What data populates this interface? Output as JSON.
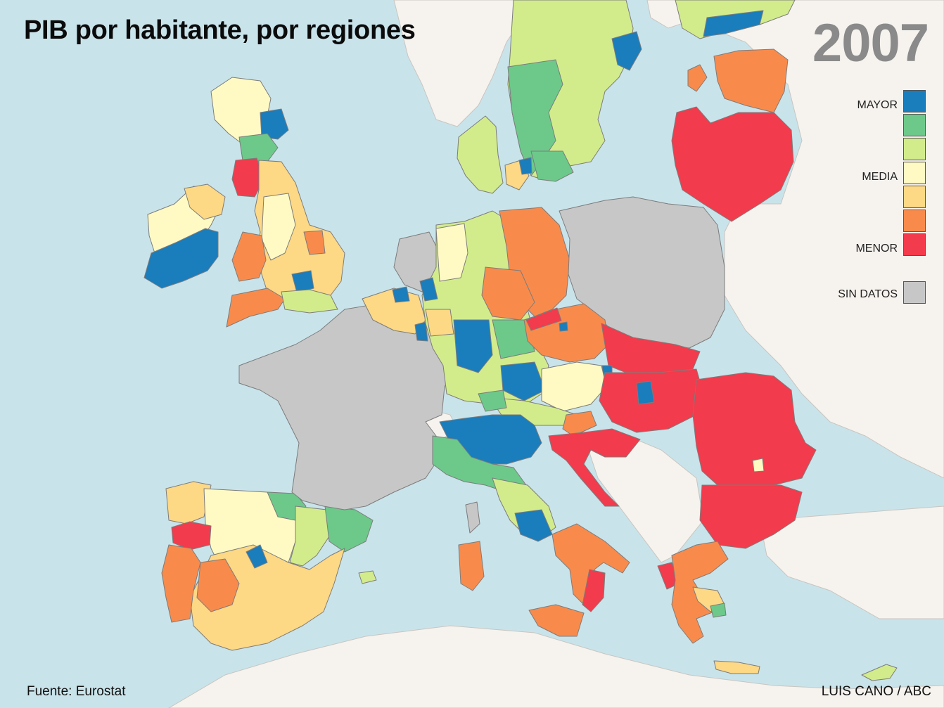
{
  "title": "PIB por habitante, por regiones",
  "year": "2007",
  "source": "Fuente: Eurostat",
  "credit": "LUIS CANO / ABC",
  "legend": {
    "labels": {
      "high": "MAYOR",
      "mid": "MEDIA",
      "low": "MENOR",
      "nodata": "SIN DATOS"
    },
    "scale": [
      {
        "level": "mayor",
        "color": "#1a7dbc"
      },
      {
        "level": "alto",
        "color": "#6cc98a"
      },
      {
        "level": "medio-alto",
        "color": "#d2ec8c"
      },
      {
        "level": "media",
        "color": "#fffac3"
      },
      {
        "level": "medio-bajo",
        "color": "#fdd885"
      },
      {
        "level": "bajo",
        "color": "#f88b4c"
      },
      {
        "level": "menor",
        "color": "#f23b4c"
      }
    ],
    "nodata_color": "#c7c7c7"
  },
  "colors": {
    "sea": "#c9e3ea",
    "non_eu_land": "#f6f3ef"
  },
  "regions": [
    {
      "name": "Irlanda",
      "level": "mayor"
    },
    {
      "name": "Escocia",
      "level": "media"
    },
    {
      "name": "Londres",
      "level": "mayor"
    },
    {
      "name": "Portugal norte",
      "level": "menor"
    },
    {
      "name": "España centro",
      "level": "media"
    },
    {
      "name": "Madrid",
      "level": "mayor"
    },
    {
      "name": "Cataluña",
      "level": "alto"
    },
    {
      "name": "Francia",
      "level": "sin-datos"
    },
    {
      "name": "Polonia",
      "level": "sin-datos"
    },
    {
      "name": "Países Bajos",
      "level": "sin-datos"
    },
    {
      "name": "Alemania oeste",
      "level": "medio-alto"
    },
    {
      "name": "Alemania este",
      "level": "bajo"
    },
    {
      "name": "Italia norte",
      "level": "mayor"
    },
    {
      "name": "Italia sur",
      "level": "bajo"
    },
    {
      "name": "Chequia",
      "level": "bajo"
    },
    {
      "name": "Hungría",
      "level": "menor"
    },
    {
      "name": "Rumanía",
      "level": "menor"
    },
    {
      "name": "Bulgaria",
      "level": "menor"
    },
    {
      "name": "Grecia",
      "level": "bajo"
    },
    {
      "name": "Países bálticos",
      "level": "menor"
    },
    {
      "name": "Suecia",
      "level": "medio-alto"
    },
    {
      "name": "Finlandia",
      "level": "medio-alto"
    },
    {
      "name": "Estonia",
      "level": "bajo"
    }
  ]
}
